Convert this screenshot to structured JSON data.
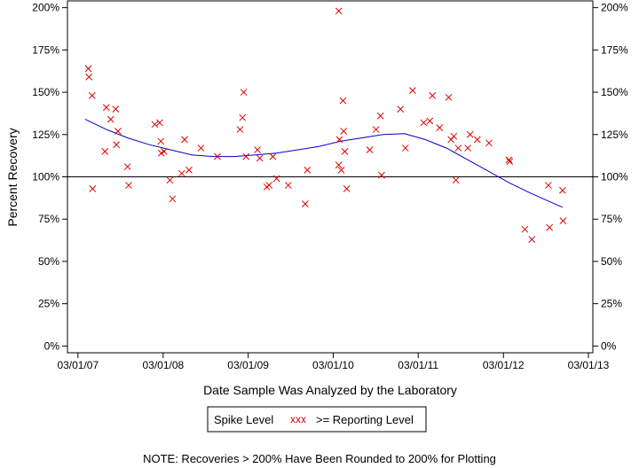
{
  "chart_data": {
    "type": "scatter",
    "xlabel": "Date Sample Was Analyzed by the Laboratory",
    "ylabel": "Percent Recovery",
    "x_ticks": [
      "03/01/07",
      "03/01/08",
      "03/01/09",
      "03/01/10",
      "03/01/11",
      "03/01/12",
      "03/01/13"
    ],
    "y_ticks": [
      "0%",
      "25%",
      "50%",
      "75%",
      "100%",
      "125%",
      "150%",
      "175%",
      "200%"
    ],
    "x_range": [
      "2007-01-15",
      "2013-03-20"
    ],
    "ylim": [
      -4,
      204
    ],
    "reference_line": 100,
    "colors": {
      "points": "#dd0000",
      "trend": "#0000cc",
      "reference": "#000000"
    },
    "series": [
      {
        "name": ">= Reporting Level",
        "marker": "x",
        "points": [
          [
            "2007-04-15",
            164
          ],
          [
            "2007-04-17",
            159
          ],
          [
            "2007-05-01",
            148
          ],
          [
            "2007-05-03",
            93
          ],
          [
            "2007-06-25",
            115
          ],
          [
            "2007-07-01",
            141
          ],
          [
            "2007-07-20",
            134
          ],
          [
            "2007-08-10",
            140
          ],
          [
            "2007-08-13",
            119
          ],
          [
            "2007-08-20",
            127
          ],
          [
            "2007-09-30",
            106
          ],
          [
            "2007-10-05",
            95
          ],
          [
            "2008-01-25",
            131
          ],
          [
            "2008-02-15",
            132
          ],
          [
            "2008-02-20",
            121
          ],
          [
            "2008-02-22",
            114
          ],
          [
            "2008-03-05",
            115
          ],
          [
            "2008-03-30",
            98
          ],
          [
            "2008-04-10",
            87
          ],
          [
            "2008-05-20",
            102
          ],
          [
            "2008-06-01",
            122
          ],
          [
            "2008-06-20",
            104
          ],
          [
            "2008-08-10",
            117
          ],
          [
            "2008-10-20",
            112
          ],
          [
            "2009-01-25",
            128
          ],
          [
            "2009-02-05",
            135
          ],
          [
            "2009-02-10",
            150
          ],
          [
            "2009-02-20",
            112
          ],
          [
            "2009-04-10",
            116
          ],
          [
            "2009-04-20",
            111
          ],
          [
            "2009-05-20",
            94
          ],
          [
            "2009-05-30",
            95
          ],
          [
            "2009-06-15",
            112
          ],
          [
            "2009-07-01",
            99
          ],
          [
            "2009-08-20",
            95
          ],
          [
            "2009-11-01",
            84
          ],
          [
            "2009-11-10",
            104
          ],
          [
            "2010-03-25",
            198
          ],
          [
            "2010-03-25",
            107
          ],
          [
            "2010-03-28",
            122
          ],
          [
            "2010-04-05",
            104
          ],
          [
            "2010-04-12",
            145
          ],
          [
            "2010-04-15",
            127
          ],
          [
            "2010-04-20",
            115
          ],
          [
            "2010-04-28",
            93
          ],
          [
            "2010-08-05",
            116
          ],
          [
            "2010-09-01",
            128
          ],
          [
            "2010-09-20",
            136
          ],
          [
            "2010-09-25",
            101
          ],
          [
            "2010-12-15",
            140
          ],
          [
            "2011-01-05",
            117
          ],
          [
            "2011-02-05",
            151
          ],
          [
            "2011-03-25",
            132
          ],
          [
            "2011-04-20",
            133
          ],
          [
            "2011-05-01",
            148
          ],
          [
            "2011-06-01",
            129
          ],
          [
            "2011-07-10",
            147
          ],
          [
            "2011-07-20",
            122
          ],
          [
            "2011-08-01",
            124
          ],
          [
            "2011-08-10",
            98
          ],
          [
            "2011-08-20",
            117
          ],
          [
            "2011-09-30",
            117
          ],
          [
            "2011-10-10",
            125
          ],
          [
            "2011-11-10",
            122
          ],
          [
            "2011-12-30",
            120
          ],
          [
            "2012-03-25",
            110
          ],
          [
            "2012-03-28",
            109
          ],
          [
            "2012-06-01",
            69
          ],
          [
            "2012-07-01",
            63
          ],
          [
            "2012-09-10",
            95
          ],
          [
            "2012-09-15",
            70
          ],
          [
            "2012-11-10",
            92
          ],
          [
            "2012-11-12",
            74
          ]
        ]
      },
      {
        "name": "Spike Level",
        "type": "line",
        "points": [
          [
            "2007-04-01",
            134
          ],
          [
            "2007-07-01",
            128
          ],
          [
            "2007-10-01",
            123
          ],
          [
            "2008-01-01",
            119
          ],
          [
            "2008-04-01",
            116
          ],
          [
            "2008-07-01",
            113
          ],
          [
            "2008-10-01",
            112
          ],
          [
            "2009-01-01",
            112
          ],
          [
            "2009-04-01",
            113
          ],
          [
            "2009-07-01",
            114
          ],
          [
            "2009-10-01",
            116
          ],
          [
            "2010-01-01",
            118
          ],
          [
            "2010-04-01",
            121
          ],
          [
            "2010-07-01",
            123
          ],
          [
            "2010-10-01",
            125
          ],
          [
            "2011-01-01",
            125.5
          ],
          [
            "2011-04-01",
            122
          ],
          [
            "2011-07-01",
            117
          ],
          [
            "2011-10-01",
            110
          ],
          [
            "2012-01-01",
            103
          ],
          [
            "2012-04-01",
            96
          ],
          [
            "2012-07-01",
            90
          ],
          [
            "2012-11-10",
            82
          ]
        ]
      }
    ],
    "legend": {
      "position": "bottom-center",
      "items": [
        "Spike Level",
        ">= Reporting Level"
      ],
      "marker_glyph": "xxx"
    },
    "note": "NOTE: Recoveries > 200% Have Been Rounded to 200% for Plotting"
  }
}
